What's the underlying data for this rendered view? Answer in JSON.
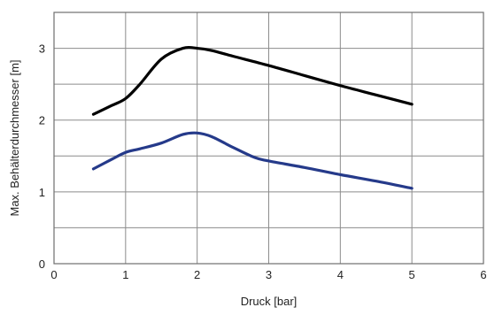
{
  "chart_data": {
    "type": "line",
    "title": "",
    "xlabel": "Druck [bar]",
    "ylabel": "Max. Behälterdurchmesser [m]",
    "xlim": [
      0,
      6
    ],
    "ylim": [
      0,
      3.5
    ],
    "xticks": [
      0,
      1,
      2,
      3,
      4,
      5,
      6
    ],
    "yticks": [
      0,
      1,
      2,
      3
    ],
    "x_gridlines": [
      0,
      1,
      2,
      3,
      4,
      5,
      6
    ],
    "y_gridlines": [
      0,
      0.5,
      1,
      1.5,
      2,
      2.5,
      3,
      3.5
    ],
    "grid": true,
    "series": [
      {
        "color": "#000000",
        "points": [
          [
            0.55,
            2.08
          ],
          [
            0.8,
            2.2
          ],
          [
            1.0,
            2.3
          ],
          [
            1.2,
            2.5
          ],
          [
            1.5,
            2.85
          ],
          [
            1.8,
            3.0
          ],
          [
            2.0,
            3.0
          ],
          [
            2.2,
            2.97
          ],
          [
            2.5,
            2.89
          ],
          [
            3.0,
            2.76
          ],
          [
            3.5,
            2.62
          ],
          [
            4.0,
            2.48
          ],
          [
            4.5,
            2.35
          ],
          [
            5.0,
            2.22
          ]
        ]
      },
      {
        "color": "#253a8a",
        "points": [
          [
            0.55,
            1.32
          ],
          [
            0.8,
            1.45
          ],
          [
            1.0,
            1.55
          ],
          [
            1.2,
            1.6
          ],
          [
            1.5,
            1.68
          ],
          [
            1.8,
            1.8
          ],
          [
            2.0,
            1.82
          ],
          [
            2.2,
            1.77
          ],
          [
            2.5,
            1.62
          ],
          [
            2.8,
            1.48
          ],
          [
            3.0,
            1.43
          ],
          [
            3.5,
            1.34
          ],
          [
            4.0,
            1.24
          ],
          [
            4.5,
            1.15
          ],
          [
            5.0,
            1.05
          ]
        ]
      }
    ]
  }
}
